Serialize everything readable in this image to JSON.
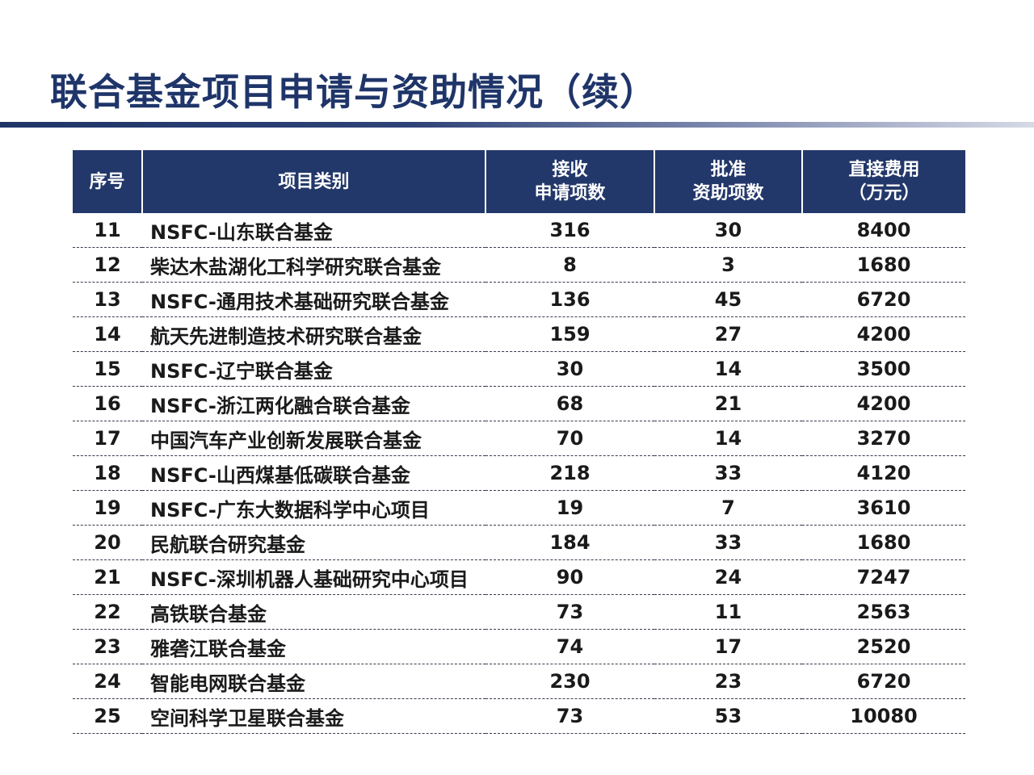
{
  "title": "联合基金项目申请与资助情况（续）",
  "table": {
    "headers": {
      "index": "序号",
      "category": "项目类别",
      "received_line1": "接收",
      "received_line2": "申请项数",
      "approved_line1": "批准",
      "approved_line2": "资助项数",
      "cost_line1": "直接费用",
      "cost_line2": "（万元）"
    },
    "rows": [
      {
        "index": "11",
        "name": "NSFC-山东联合基金",
        "received": "316",
        "approved": "30",
        "cost": "8400"
      },
      {
        "index": "12",
        "name": "柴达木盐湖化工科学研究联合基金",
        "received": "8",
        "approved": "3",
        "cost": "1680"
      },
      {
        "index": "13",
        "name": "NSFC-通用技术基础研究联合基金",
        "received": "136",
        "approved": "45",
        "cost": "6720"
      },
      {
        "index": "14",
        "name": "航天先进制造技术研究联合基金",
        "received": "159",
        "approved": "27",
        "cost": "4200"
      },
      {
        "index": "15",
        "name": "NSFC-辽宁联合基金",
        "received": "30",
        "approved": "14",
        "cost": "3500"
      },
      {
        "index": "16",
        "name": "NSFC-浙江两化融合联合基金",
        "received": "68",
        "approved": "21",
        "cost": "4200"
      },
      {
        "index": "17",
        "name": "中国汽车产业创新发展联合基金",
        "received": "70",
        "approved": "14",
        "cost": "3270"
      },
      {
        "index": "18",
        "name": "NSFC-山西煤基低碳联合基金",
        "received": "218",
        "approved": "33",
        "cost": "4120"
      },
      {
        "index": "19",
        "name": "NSFC-广东大数据科学中心项目",
        "received": "19",
        "approved": "7",
        "cost": "3610"
      },
      {
        "index": "20",
        "name": "民航联合研究基金",
        "received": "184",
        "approved": "33",
        "cost": "1680"
      },
      {
        "index": "21",
        "name": "NSFC-深圳机器人基础研究中心项目",
        "received": "90",
        "approved": "24",
        "cost": "7247"
      },
      {
        "index": "22",
        "name": "高铁联合基金",
        "received": "73",
        "approved": "11",
        "cost": "2563"
      },
      {
        "index": "23",
        "name": "雅砻江联合基金",
        "received": "74",
        "approved": "17",
        "cost": "2520"
      },
      {
        "index": "24",
        "name": "智能电网联合基金",
        "received": "230",
        "approved": "23",
        "cost": "6720"
      },
      {
        "index": "25",
        "name": "空间科学卫星联合基金",
        "received": "73",
        "approved": "53",
        "cost": "10080"
      }
    ]
  }
}
